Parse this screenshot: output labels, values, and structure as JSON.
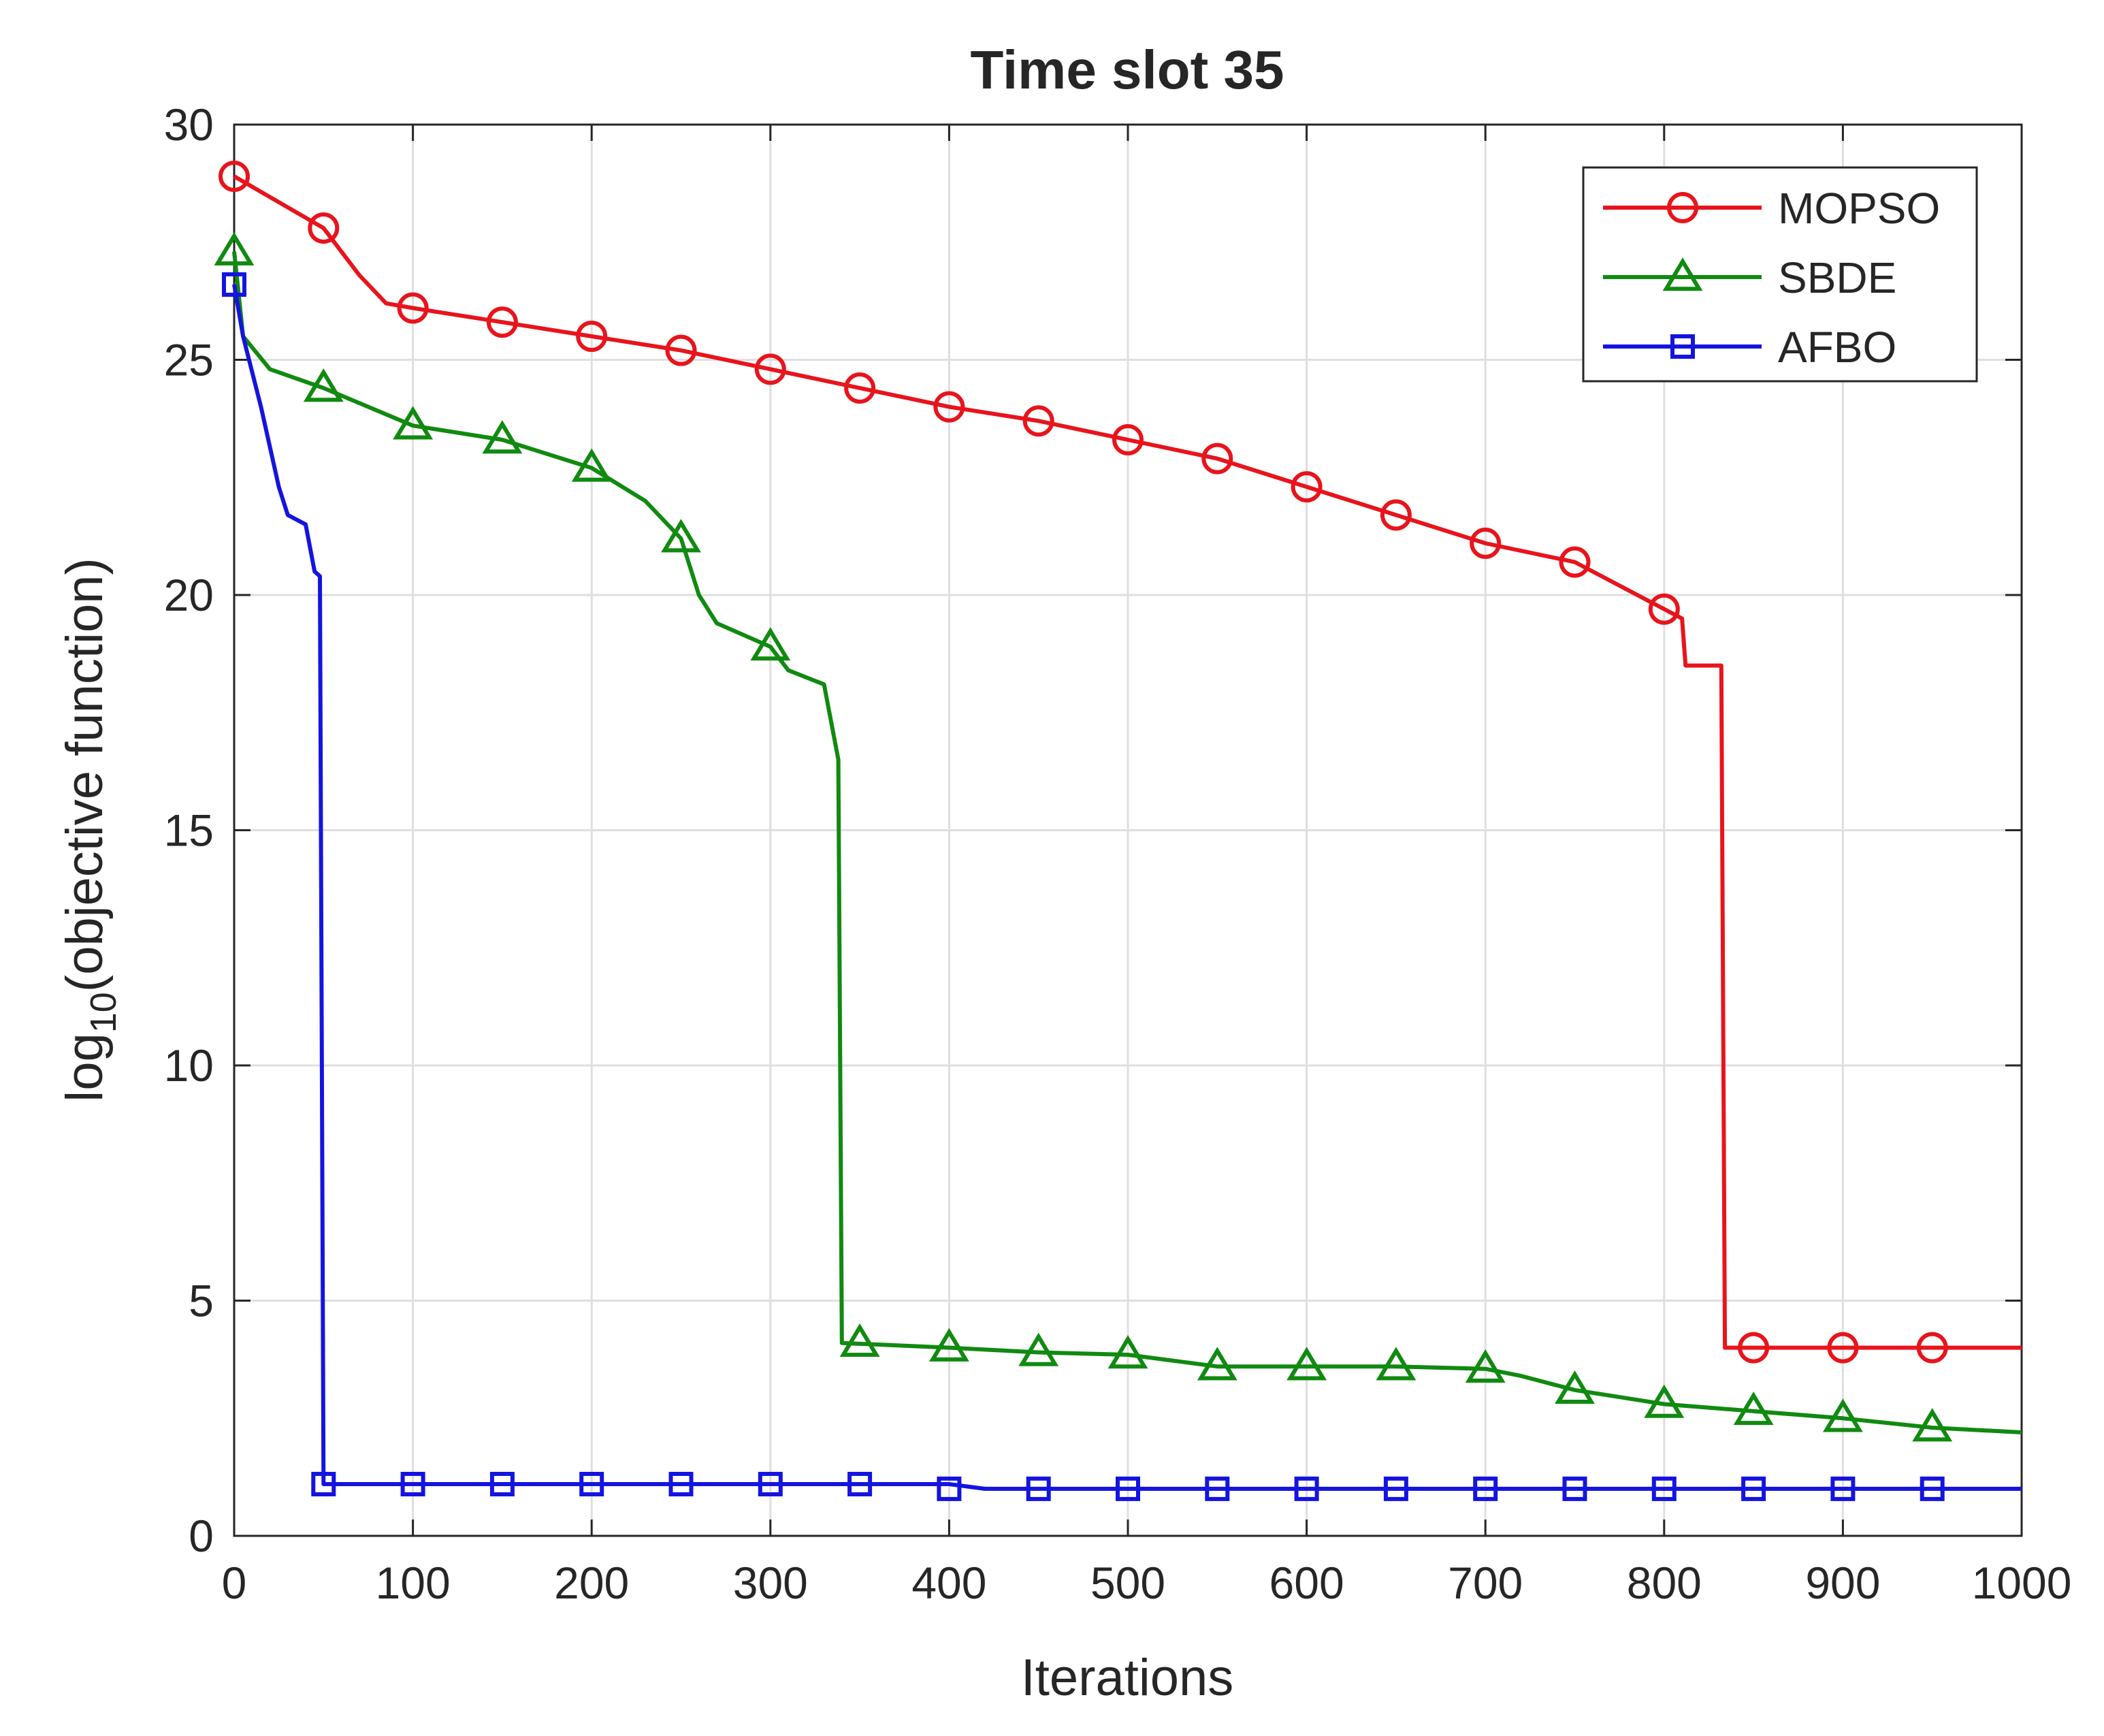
{
  "chart_data": {
    "type": "line",
    "title": "Time slot 35",
    "xlabel": "Iterations",
    "ylabel_main": "log",
    "ylabel_sub": "10",
    "ylabel_rest": "(objective function)",
    "xlim": [
      0,
      1000
    ],
    "ylim": [
      0,
      30
    ],
    "xticks": [
      0,
      100,
      200,
      300,
      400,
      500,
      600,
      700,
      800,
      900,
      1000
    ],
    "xtick_labels": [
      "0",
      "100",
      "200",
      "300",
      "400",
      "500",
      "600",
      "700",
      "800",
      "900",
      "1000"
    ],
    "yticks": [
      0,
      5,
      10,
      15,
      20,
      25,
      30
    ],
    "ytick_labels": [
      "0",
      "5",
      "10",
      "15",
      "20",
      "25",
      "30"
    ],
    "grid": true,
    "legend_position": "top-right",
    "series": [
      {
        "name": "MOPSO",
        "color": "#e8141c",
        "marker": "circle",
        "line": [
          [
            0,
            28.9
          ],
          [
            50,
            27.8
          ],
          [
            70,
            26.8
          ],
          [
            85,
            26.2
          ],
          [
            100,
            26.1
          ],
          [
            150,
            25.8
          ],
          [
            200,
            25.5
          ],
          [
            250,
            25.2
          ],
          [
            300,
            24.8
          ],
          [
            350,
            24.4
          ],
          [
            400,
            24.0
          ],
          [
            450,
            23.7
          ],
          [
            500,
            23.3
          ],
          [
            550,
            22.9
          ],
          [
            600,
            22.3
          ],
          [
            650,
            21.7
          ],
          [
            700,
            21.1
          ],
          [
            750,
            20.7
          ],
          [
            800,
            19.7
          ],
          [
            810,
            19.5
          ],
          [
            812,
            18.5
          ],
          [
            832,
            18.5
          ],
          [
            834,
            4.0
          ],
          [
            1000,
            4.0
          ]
        ],
        "markers_x": [
          0,
          50,
          100,
          150,
          200,
          250,
          300,
          350,
          400,
          450,
          500,
          550,
          600,
          650,
          700,
          750,
          800,
          850,
          900,
          950
        ],
        "markers_y": [
          28.9,
          27.8,
          26.1,
          25.8,
          25.5,
          25.2,
          24.8,
          24.4,
          24.0,
          23.7,
          23.3,
          22.9,
          22.3,
          21.7,
          21.1,
          20.7,
          19.7,
          4.0,
          4.0,
          4.0
        ]
      },
      {
        "name": "SBDE",
        "color": "#108a10",
        "marker": "triangle",
        "line": [
          [
            0,
            27.3
          ],
          [
            5,
            25.5
          ],
          [
            20,
            24.8
          ],
          [
            50,
            24.4
          ],
          [
            100,
            23.6
          ],
          [
            150,
            23.3
          ],
          [
            200,
            22.7
          ],
          [
            230,
            22.0
          ],
          [
            250,
            21.2
          ],
          [
            260,
            20.0
          ],
          [
            270,
            19.4
          ],
          [
            300,
            18.9
          ],
          [
            310,
            18.4
          ],
          [
            330,
            18.1
          ],
          [
            338,
            16.5
          ],
          [
            340,
            4.1
          ],
          [
            400,
            4.0
          ],
          [
            450,
            3.9
          ],
          [
            500,
            3.85
          ],
          [
            530,
            3.7
          ],
          [
            550,
            3.6
          ],
          [
            600,
            3.6
          ],
          [
            650,
            3.6
          ],
          [
            700,
            3.55
          ],
          [
            720,
            3.4
          ],
          [
            750,
            3.1
          ],
          [
            800,
            2.8
          ],
          [
            850,
            2.65
          ],
          [
            900,
            2.5
          ],
          [
            950,
            2.3
          ],
          [
            1000,
            2.2
          ]
        ],
        "markers_x": [
          0,
          50,
          100,
          150,
          200,
          250,
          300,
          350,
          400,
          450,
          500,
          550,
          600,
          650,
          700,
          750,
          800,
          850,
          900,
          950
        ],
        "markers_y": [
          27.3,
          24.4,
          23.6,
          23.3,
          22.7,
          21.2,
          18.9,
          4.1,
          4.0,
          3.9,
          3.85,
          3.6,
          3.6,
          3.6,
          3.55,
          3.1,
          2.8,
          2.65,
          2.5,
          2.3
        ]
      },
      {
        "name": "AFBO",
        "color": "#1414e0",
        "marker": "square",
        "line": [
          [
            0,
            26.6
          ],
          [
            5,
            25.5
          ],
          [
            15,
            24.0
          ],
          [
            25,
            22.3
          ],
          [
            30,
            21.7
          ],
          [
            40,
            21.5
          ],
          [
            45,
            20.5
          ],
          [
            48,
            20.4
          ],
          [
            50,
            1.1
          ],
          [
            400,
            1.1
          ],
          [
            420,
            1.0
          ],
          [
            1000,
            1.0
          ]
        ],
        "markers_x": [
          0,
          50,
          100,
          150,
          200,
          250,
          300,
          350,
          400,
          450,
          500,
          550,
          600,
          650,
          700,
          750,
          800,
          850,
          900,
          950
        ],
        "markers_y": [
          26.6,
          1.1,
          1.1,
          1.1,
          1.1,
          1.1,
          1.1,
          1.1,
          1.0,
          1.0,
          1.0,
          1.0,
          1.0,
          1.0,
          1.0,
          1.0,
          1.0,
          1.0,
          1.0,
          1.0
        ]
      }
    ]
  }
}
